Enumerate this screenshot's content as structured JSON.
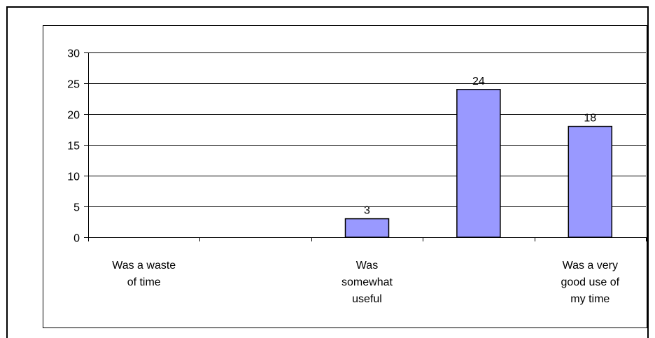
{
  "chart_data": {
    "type": "bar",
    "categories": [
      "Was a waste of time",
      "",
      "Was somewhat useful",
      "",
      "Was a very good use of my time"
    ],
    "x_labels": [
      [
        "Was a waste",
        "of time"
      ],
      [],
      [
        "Was",
        "somewhat",
        "useful"
      ],
      [],
      [
        "Was a very",
        "good use of",
        "my time"
      ]
    ],
    "values": [
      0,
      0,
      3,
      24,
      18
    ],
    "data_labels": [
      "",
      "",
      "3",
      "24",
      "18"
    ],
    "yticks": [
      "0",
      "5",
      "10",
      "15",
      "20",
      "25",
      "30"
    ],
    "ylim": [
      0,
      30
    ],
    "grid": true,
    "legend": "none",
    "colors": {
      "bar_fill": "#9999ff",
      "bar_stroke": "#000000",
      "grid": "#000000"
    }
  }
}
